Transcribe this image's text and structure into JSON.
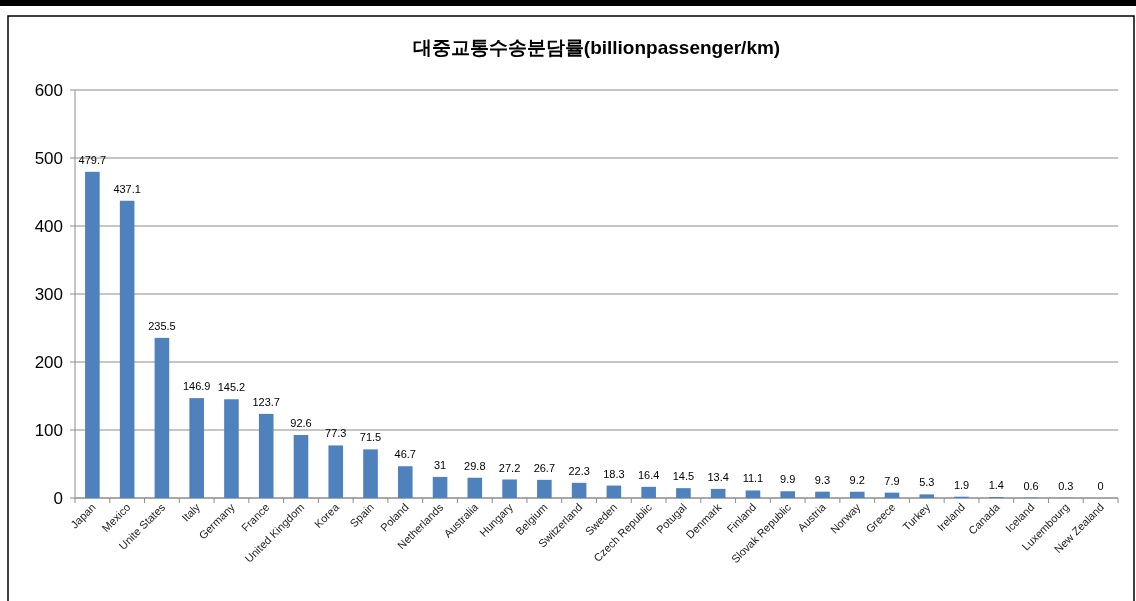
{
  "chart_data": {
    "type": "bar",
    "title": "대중교통수송분담률(billionpassenger/km)",
    "categories": [
      "Japan",
      "Mexico",
      "Unite States",
      "Italy",
      "Germany",
      "France",
      "United Kingdom",
      "Korea",
      "Spain",
      "Poland",
      "Netherlands",
      "Australia",
      "Hungary",
      "Belgium",
      "Switzerland",
      "Sweden",
      "Czech Republic",
      "Potugal",
      "Denmark",
      "Finland",
      "Slovak Republic",
      "Austria",
      "Norway",
      "Greece",
      "Turkey",
      "Ireland",
      "Canada",
      "Iceland",
      "Luxembourg",
      "New Zealand"
    ],
    "values": [
      479.7,
      437.1,
      235.5,
      146.9,
      145.2,
      123.7,
      92.6,
      77.3,
      71.5,
      46.7,
      31,
      29.8,
      27.2,
      26.7,
      22.3,
      18.3,
      16.4,
      14.5,
      13.4,
      11.1,
      9.9,
      9.3,
      9.2,
      7.9,
      5.3,
      1.9,
      1.4,
      0.6,
      0.3,
      0
    ],
    "color": "#4f81bd",
    "ylim": [
      0,
      600
    ],
    "yticks": [
      0,
      100,
      200,
      300,
      400,
      500,
      600
    ],
    "grid": "y",
    "data_labels": true
  }
}
